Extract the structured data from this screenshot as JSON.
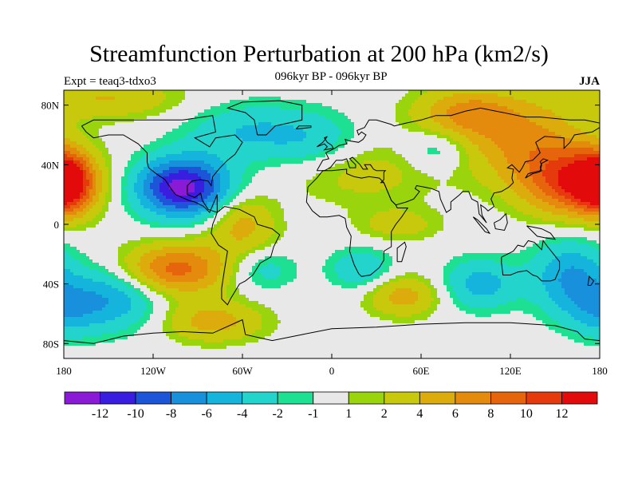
{
  "header": {
    "title": "Streamfunction Perturbation at 200 hPa (km2/s)",
    "subtitle": "096kyr BP - 096kyr BP",
    "expt": "Expt = teaq3-tdxo3",
    "season": "JJA"
  },
  "axes": {
    "x_ticks": [
      {
        "label": "180",
        "lon": -180
      },
      {
        "label": "120W",
        "lon": -120
      },
      {
        "label": "60W",
        "lon": -60
      },
      {
        "label": "0",
        "lon": 0
      },
      {
        "label": "60E",
        "lon": 60
      },
      {
        "label": "120E",
        "lon": 120
      },
      {
        "label": "180",
        "lon": 180
      }
    ],
    "y_ticks": [
      {
        "label": "80N",
        "lat": 80
      },
      {
        "label": "40N",
        "lat": 40
      },
      {
        "label": "0",
        "lat": 0
      },
      {
        "label": "40S",
        "lat": -40
      },
      {
        "label": "80S",
        "lat": -80
      }
    ],
    "lon_range": [
      -180,
      180
    ],
    "lat_range": [
      -90,
      90
    ]
  },
  "colorbar": {
    "colors": [
      "#8a1ad6",
      "#3a1ee0",
      "#1d55d8",
      "#1890dc",
      "#14b4dc",
      "#22d4cc",
      "#1ee092",
      "#e8e8e8",
      "#9ad40c",
      "#c8c80c",
      "#dcac0c",
      "#e48a0c",
      "#e6640c",
      "#e43a0c",
      "#e20a0a"
    ],
    "labels": [
      "-12",
      "-10",
      "-8",
      "-6",
      "-4",
      "-2",
      "-1",
      "1",
      "2",
      "4",
      "6",
      "8",
      "10",
      "12"
    ],
    "levels": [
      -12,
      -10,
      -8,
      -6,
      -4,
      -2,
      -1,
      1,
      2,
      4,
      6,
      8,
      10,
      12
    ]
  },
  "field_centers": [
    {
      "lon": -100,
      "lat": 25,
      "amp": -13,
      "slon": 22,
      "slat": 14
    },
    {
      "lon": -150,
      "lat": -50,
      "amp": -6,
      "slon": 25,
      "slat": 15
    },
    {
      "lon": -105,
      "lat": -30,
      "amp": 9,
      "slon": 25,
      "slat": 12
    },
    {
      "lon": -80,
      "lat": -65,
      "amp": 5,
      "slon": 25,
      "slat": 10
    },
    {
      "lon": -178,
      "lat": 28,
      "amp": 10,
      "slon": 12,
      "slat": 14
    },
    {
      "lon": 165,
      "lat": 28,
      "amp": 11,
      "slon": 25,
      "slat": 16
    },
    {
      "lon": 130,
      "lat": 55,
      "amp": 6,
      "slon": 30,
      "slat": 20
    },
    {
      "lon": 90,
      "lat": 75,
      "amp": 6,
      "slon": 25,
      "slat": 12
    },
    {
      "lon": 160,
      "lat": -35,
      "amp": -6,
      "slon": 18,
      "slat": 18
    },
    {
      "lon": 100,
      "lat": -40,
      "amp": -5,
      "slon": 18,
      "slat": 12
    },
    {
      "lon": 20,
      "lat": -30,
      "amp": -4,
      "slon": 15,
      "slat": 10
    },
    {
      "lon": 48,
      "lat": -48,
      "amp": 5,
      "slon": 18,
      "slat": 10
    },
    {
      "lon": 20,
      "lat": 35,
      "amp": 3,
      "slon": 35,
      "slat": 15
    },
    {
      "lon": -55,
      "lat": 62,
      "amp": -4,
      "slon": 30,
      "slat": 14
    },
    {
      "lon": -10,
      "lat": 55,
      "amp": -3,
      "slon": 22,
      "slat": 14
    },
    {
      "lon": 70,
      "lat": 50,
      "amp": -3,
      "slon": 15,
      "slat": 10
    },
    {
      "lon": -60,
      "lat": 5,
      "amp": 4,
      "slon": 15,
      "slat": 12
    },
    {
      "lon": 45,
      "lat": 0,
      "amp": 3,
      "slon": 20,
      "slat": 8
    },
    {
      "lon": -45,
      "lat": -30,
      "amp": -3,
      "slon": 15,
      "slat": 10
    },
    {
      "lon": -150,
      "lat": 85,
      "amp": 4,
      "slon": 35,
      "slat": 10
    },
    {
      "lon": -60,
      "lat": -10,
      "amp": 2,
      "slon": 20,
      "slat": 10
    },
    {
      "lon": 180,
      "lat": -60,
      "amp": -3,
      "slon": 15,
      "slat": 12
    }
  ],
  "coastlines": [
    [
      [
        -168,
        66
      ],
      [
        -160,
        70
      ],
      [
        -140,
        70
      ],
      [
        -120,
        70
      ],
      [
        -100,
        70
      ],
      [
        -80,
        73
      ],
      [
        -78,
        62
      ],
      [
        -92,
        58
      ],
      [
        -82,
        52
      ],
      [
        -78,
        58
      ],
      [
        -65,
        60
      ],
      [
        -60,
        55
      ],
      [
        -65,
        47
      ],
      [
        -70,
        43
      ],
      [
        -75,
        38
      ],
      [
        -80,
        32
      ],
      [
        -81,
        26
      ],
      [
        -83,
        29
      ],
      [
        -88,
        30
      ],
      [
        -94,
        29
      ],
      [
        -97,
        26
      ],
      [
        -97,
        20
      ],
      [
        -92,
        18
      ],
      [
        -88,
        21
      ],
      [
        -87,
        16
      ],
      [
        -83,
        10
      ],
      [
        -80,
        9
      ],
      [
        -77,
        8
      ],
      [
        -77,
        20
      ],
      [
        -82,
        8
      ],
      [
        -86,
        12
      ],
      [
        -92,
        15
      ],
      [
        -96,
        16
      ],
      [
        -105,
        20
      ],
      [
        -108,
        24
      ],
      [
        -112,
        30
      ],
      [
        -115,
        32
      ],
      [
        -118,
        34
      ],
      [
        -123,
        38
      ],
      [
        -124,
        42
      ],
      [
        -124,
        48
      ],
      [
        -130,
        54
      ],
      [
        -140,
        60
      ],
      [
        -150,
        60
      ],
      [
        -160,
        58
      ],
      [
        -165,
        62
      ],
      [
        -168,
        66
      ]
    ],
    [
      [
        -77,
        8
      ],
      [
        -72,
        12
      ],
      [
        -62,
        10
      ],
      [
        -52,
        5
      ],
      [
        -50,
        0
      ],
      [
        -40,
        -3
      ],
      [
        -35,
        -7
      ],
      [
        -39,
        -15
      ],
      [
        -41,
        -22
      ],
      [
        -48,
        -26
      ],
      [
        -53,
        -34
      ],
      [
        -58,
        -38
      ],
      [
        -62,
        -40
      ],
      [
        -65,
        -45
      ],
      [
        -68,
        -50
      ],
      [
        -70,
        -54
      ],
      [
        -74,
        -50
      ],
      [
        -74,
        -43
      ],
      [
        -72,
        -30
      ],
      [
        -70,
        -18
      ],
      [
        -76,
        -14
      ],
      [
        -81,
        -6
      ],
      [
        -80,
        0
      ],
      [
        -78,
        5
      ],
      [
        -77,
        8
      ]
    ],
    [
      [
        -50,
        60
      ],
      [
        -44,
        60
      ],
      [
        -38,
        66
      ],
      [
        -20,
        70
      ],
      [
        -20,
        80
      ],
      [
        -35,
        83
      ],
      [
        -60,
        82
      ],
      [
        -70,
        78
      ],
      [
        -58,
        75
      ],
      [
        -52,
        70
      ],
      [
        -50,
        60
      ]
    ],
    [
      [
        -10,
        36
      ],
      [
        -6,
        43
      ],
      [
        -2,
        44
      ],
      [
        -4,
        48
      ],
      [
        2,
        51
      ],
      [
        5,
        53
      ],
      [
        10,
        54
      ],
      [
        9,
        57
      ],
      [
        12,
        56
      ],
      [
        18,
        55
      ],
      [
        21,
        57
      ],
      [
        23,
        60
      ],
      [
        20,
        62
      ],
      [
        18,
        60
      ],
      [
        17,
        63
      ],
      [
        22,
        65
      ],
      [
        25,
        70
      ],
      [
        30,
        70
      ],
      [
        40,
        67
      ],
      [
        42,
        66
      ],
      [
        50,
        68
      ],
      [
        60,
        70
      ],
      [
        70,
        73
      ],
      [
        80,
        73
      ],
      [
        90,
        76
      ],
      [
        100,
        78
      ],
      [
        110,
        76
      ],
      [
        130,
        72
      ],
      [
        140,
        72
      ],
      [
        160,
        70
      ],
      [
        170,
        70
      ],
      [
        180,
        68
      ],
      [
        180,
        65
      ],
      [
        175,
        62
      ],
      [
        163,
        60
      ],
      [
        160,
        55
      ],
      [
        156,
        51
      ],
      [
        156,
        58
      ],
      [
        143,
        59
      ],
      [
        137,
        55
      ],
      [
        140,
        48
      ],
      [
        135,
        43
      ],
      [
        130,
        42
      ],
      [
        128,
        38
      ],
      [
        126,
        35
      ],
      [
        121,
        40
      ],
      [
        118,
        38
      ],
      [
        122,
        37
      ],
      [
        121,
        31
      ],
      [
        122,
        28
      ],
      [
        119,
        25
      ],
      [
        114,
        22
      ],
      [
        109,
        21
      ],
      [
        107,
        17
      ],
      [
        109,
        12
      ],
      [
        105,
        9
      ],
      [
        103,
        11
      ],
      [
        100,
        13
      ],
      [
        101,
        6
      ],
      [
        104,
        1
      ],
      [
        99,
        7
      ],
      [
        98,
        15
      ],
      [
        94,
        17
      ],
      [
        92,
        22
      ],
      [
        88,
        22
      ],
      [
        86,
        20
      ],
      [
        80,
        15
      ],
      [
        80,
        10
      ],
      [
        77,
        8
      ],
      [
        73,
        17
      ],
      [
        72,
        22
      ],
      [
        67,
        24
      ],
      [
        62,
        25
      ],
      [
        57,
        26
      ],
      [
        56,
        24
      ],
      [
        59,
        22
      ],
      [
        55,
        17
      ],
      [
        50,
        15
      ],
      [
        43,
        13
      ],
      [
        40,
        16
      ],
      [
        35,
        28
      ],
      [
        33,
        28
      ],
      [
        35,
        30
      ],
      [
        35,
        35
      ],
      [
        36,
        36
      ],
      [
        30,
        36
      ],
      [
        28,
        37
      ],
      [
        26,
        40
      ],
      [
        22,
        40
      ],
      [
        24,
        37
      ],
      [
        21,
        37
      ],
      [
        19,
        40
      ],
      [
        14,
        45
      ],
      [
        12,
        44
      ],
      [
        16,
        40
      ],
      [
        16,
        38
      ],
      [
        12,
        38
      ],
      [
        10,
        44
      ],
      [
        7,
        43
      ],
      [
        3,
        43
      ],
      [
        -1,
        38
      ],
      [
        -5,
        36
      ],
      [
        -10,
        36
      ]
    ],
    [
      [
        -6,
        36
      ],
      [
        -10,
        31
      ],
      [
        -16,
        25
      ],
      [
        -17,
        15
      ],
      [
        -13,
        9
      ],
      [
        -8,
        5
      ],
      [
        -3,
        5
      ],
      [
        5,
        6
      ],
      [
        9,
        4
      ],
      [
        10,
        -2
      ],
      [
        13,
        -8
      ],
      [
        12,
        -18
      ],
      [
        15,
        -27
      ],
      [
        18,
        -33
      ],
      [
        20,
        -35
      ],
      [
        26,
        -34
      ],
      [
        32,
        -29
      ],
      [
        35,
        -24
      ],
      [
        35,
        -18
      ],
      [
        40,
        -15
      ],
      [
        40,
        -5
      ],
      [
        43,
        0
      ],
      [
        47,
        5
      ],
      [
        51,
        11
      ],
      [
        44,
        11
      ],
      [
        43,
        13
      ],
      [
        40,
        16
      ],
      [
        35,
        28
      ],
      [
        32,
        31
      ],
      [
        25,
        32
      ],
      [
        20,
        31
      ],
      [
        15,
        32
      ],
      [
        10,
        34
      ],
      [
        10,
        37
      ],
      [
        0,
        36
      ],
      [
        -6,
        36
      ]
    ],
    [
      [
        44,
        -25
      ],
      [
        47,
        -25
      ],
      [
        50,
        -15
      ],
      [
        49,
        -12
      ],
      [
        44,
        -16
      ],
      [
        44,
        -25
      ]
    ],
    [
      [
        114,
        -22
      ],
      [
        114,
        -26
      ],
      [
        115,
        -34
      ],
      [
        120,
        -34
      ],
      [
        125,
        -32
      ],
      [
        131,
        -31
      ],
      [
        135,
        -34
      ],
      [
        138,
        -35
      ],
      [
        141,
        -38
      ],
      [
        147,
        -38
      ],
      [
        150,
        -37
      ],
      [
        153,
        -30
      ],
      [
        153,
        -25
      ],
      [
        145,
        -15
      ],
      [
        142,
        -11
      ],
      [
        141,
        -17
      ],
      [
        136,
        -12
      ],
      [
        132,
        -11
      ],
      [
        129,
        -15
      ],
      [
        125,
        -14
      ],
      [
        122,
        -18
      ],
      [
        114,
        -22
      ]
    ],
    [
      [
        95,
        5
      ],
      [
        98,
        3
      ],
      [
        104,
        -3
      ],
      [
        106,
        -6
      ],
      [
        103,
        -5
      ],
      [
        99,
        0
      ],
      [
        95,
        5
      ]
    ],
    [
      [
        109,
        1
      ],
      [
        110,
        -3
      ],
      [
        116,
        -4
      ],
      [
        118,
        1
      ],
      [
        117,
        7
      ],
      [
        113,
        3
      ],
      [
        109,
        1
      ]
    ],
    [
      [
        131,
        -1
      ],
      [
        141,
        -3
      ],
      [
        147,
        -6
      ],
      [
        150,
        -10
      ],
      [
        143,
        -9
      ],
      [
        138,
        -8
      ],
      [
        131,
        -1
      ]
    ],
    [
      [
        130,
        31
      ],
      [
        132,
        34
      ],
      [
        136,
        35
      ],
      [
        140,
        36
      ],
      [
        141,
        40
      ],
      [
        140,
        42
      ],
      [
        142,
        44
      ],
      [
        145,
        43
      ],
      [
        141,
        41
      ],
      [
        140,
        38
      ],
      [
        141,
        36
      ],
      [
        139,
        35
      ],
      [
        135,
        34
      ],
      [
        130,
        31
      ]
    ],
    [
      [
        -10,
        52
      ],
      [
        -6,
        55
      ],
      [
        -3,
        59
      ],
      [
        -5,
        58
      ],
      [
        -3,
        55
      ],
      [
        0,
        53
      ],
      [
        1,
        51
      ],
      [
        -5,
        50
      ],
      [
        -3,
        52
      ],
      [
        -5,
        54
      ],
      [
        -10,
        52
      ]
    ],
    [
      [
        -24,
        64
      ],
      [
        -14,
        65
      ],
      [
        -14,
        66
      ],
      [
        -22,
        66
      ],
      [
        -24,
        64
      ]
    ],
    [
      [
        172,
        -41
      ],
      [
        174,
        -41
      ],
      [
        176,
        -38
      ],
      [
        173,
        -35
      ],
      [
        172,
        -41
      ]
    ],
    [
      [
        -180,
        -78
      ],
      [
        -160,
        -80
      ],
      [
        -140,
        -75
      ],
      [
        -120,
        -73
      ],
      [
        -100,
        -72
      ],
      [
        -80,
        -73
      ],
      [
        -60,
        -64
      ],
      [
        -58,
        -74
      ],
      [
        -40,
        -78
      ],
      [
        -20,
        -74
      ],
      [
        0,
        -70
      ],
      [
        30,
        -69
      ],
      [
        60,
        -67
      ],
      [
        90,
        -66
      ],
      [
        120,
        -66
      ],
      [
        150,
        -68
      ],
      [
        165,
        -72
      ],
      [
        170,
        -77
      ],
      [
        180,
        -78
      ]
    ]
  ]
}
